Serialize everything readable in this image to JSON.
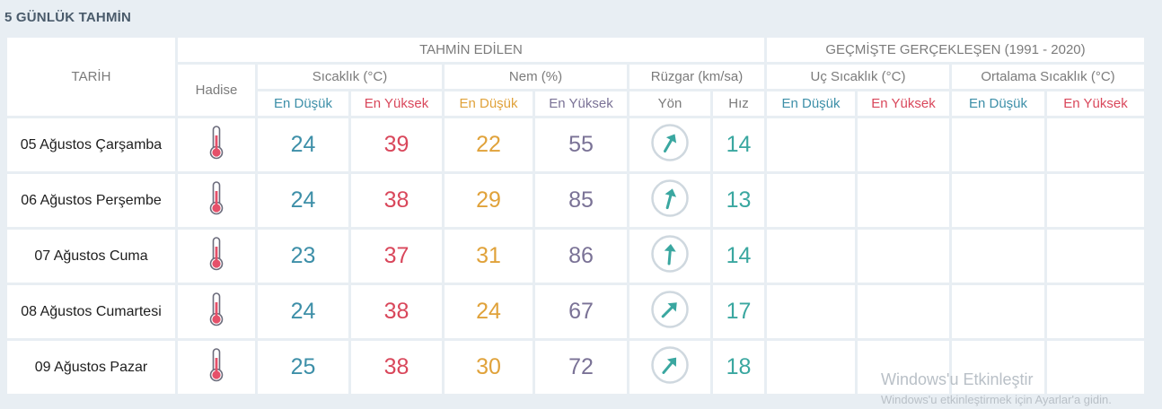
{
  "title": "5 GÜNLÜK TAHMİN",
  "headers": {
    "date": "TARİH",
    "forecast": "TAHMİN EDİLEN",
    "past": "GEÇMİŞTE GERÇEKLEŞEN (1991 - 2020)",
    "event": "Hadise",
    "temp": "Sıcaklık (°C)",
    "humidity": "Nem (%)",
    "wind": "Rüzgar (km/sa)",
    "extreme_temp": "Uç Sıcaklık (°C)",
    "avg_temp": "Ortalama Sıcaklık (°C)",
    "low": "En Düşük",
    "high": "En Yüksek",
    "direction": "Yön",
    "speed": "Hız"
  },
  "rows": [
    {
      "date": "05 Ağustos Çarşamba",
      "event_icon": "thermometer-icon",
      "temp_low": "24",
      "temp_high": "39",
      "hum_low": "22",
      "hum_high": "55",
      "wind_dir_deg": 210,
      "wind_speed": "14"
    },
    {
      "date": "06 Ağustos Perşembe",
      "event_icon": "thermometer-icon",
      "temp_low": "24",
      "temp_high": "38",
      "hum_low": "29",
      "hum_high": "85",
      "wind_dir_deg": 195,
      "wind_speed": "13"
    },
    {
      "date": "07 Ağustos Cuma",
      "event_icon": "thermometer-icon",
      "temp_low": "23",
      "temp_high": "37",
      "hum_low": "31",
      "hum_high": "86",
      "wind_dir_deg": 185,
      "wind_speed": "14"
    },
    {
      "date": "08 Ağustos Cumartesi",
      "event_icon": "thermometer-icon",
      "temp_low": "24",
      "temp_high": "38",
      "hum_low": "24",
      "hum_high": "67",
      "wind_dir_deg": 225,
      "wind_speed": "17"
    },
    {
      "date": "09 Ağustos Pazar",
      "event_icon": "thermometer-icon",
      "temp_low": "25",
      "temp_high": "38",
      "hum_low": "30",
      "hum_high": "72",
      "wind_dir_deg": 220,
      "wind_speed": "18"
    }
  ],
  "watermark": {
    "line1": "Windows'u Etkinleştir",
    "line2": "Windows'u etkinleştirmek için Ayarlar'a gidin."
  },
  "colors": {
    "low": "#3d8fa8",
    "high": "#d9475b",
    "hum_low": "#e0a23a",
    "hum_high": "#7a7296",
    "wind": "#3aa7a0"
  }
}
